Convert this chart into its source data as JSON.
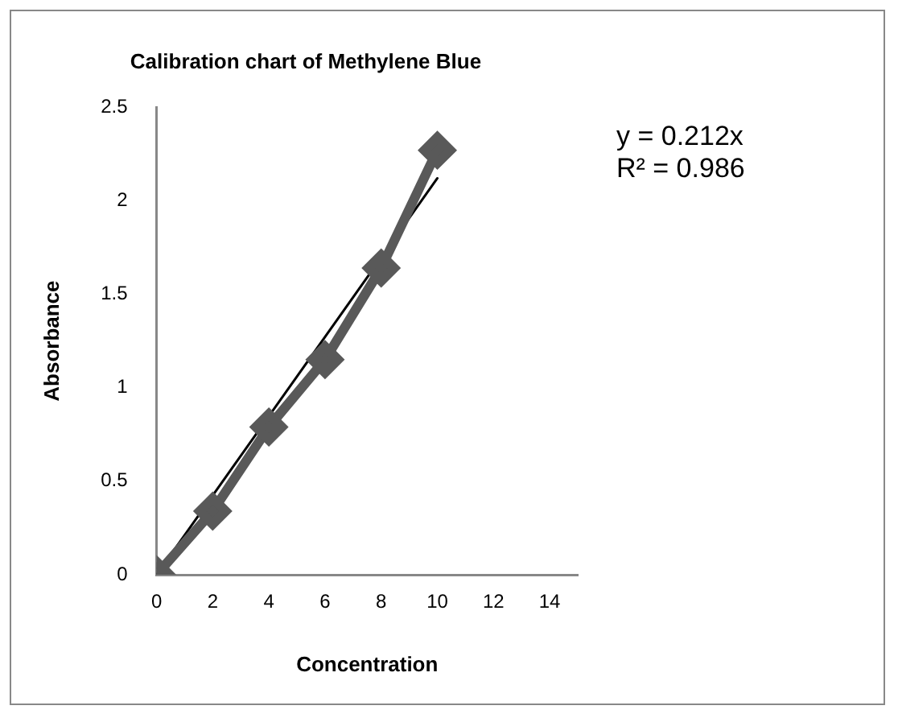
{
  "chart_data": {
    "type": "line",
    "title": "Calibration chart of Methylene Blue",
    "xlabel": "Concentration",
    "ylabel": "Absorbance",
    "series": [
      {
        "color": "#595959",
        "x": [
          0,
          2,
          4,
          6,
          8,
          10
        ],
        "values": [
          0,
          0.34,
          0.79,
          1.15,
          1.64,
          2.27
        ],
        "marker": "diamond"
      },
      {
        "color": "#000000",
        "x": [
          0,
          10
        ],
        "values": [
          0,
          2.12
        ],
        "marker": "none"
      }
    ],
    "xlim": [
      0,
      15
    ],
    "xticks": [
      0,
      2,
      4,
      6,
      8,
      10,
      12,
      14
    ],
    "ylim": [
      0,
      2.5
    ],
    "yticks": [
      0,
      0.5,
      1,
      1.5,
      2,
      2.5
    ],
    "annotations": [
      "y = 0.212x",
      "R² = 0.986"
    ],
    "grid": false,
    "legend": false
  }
}
